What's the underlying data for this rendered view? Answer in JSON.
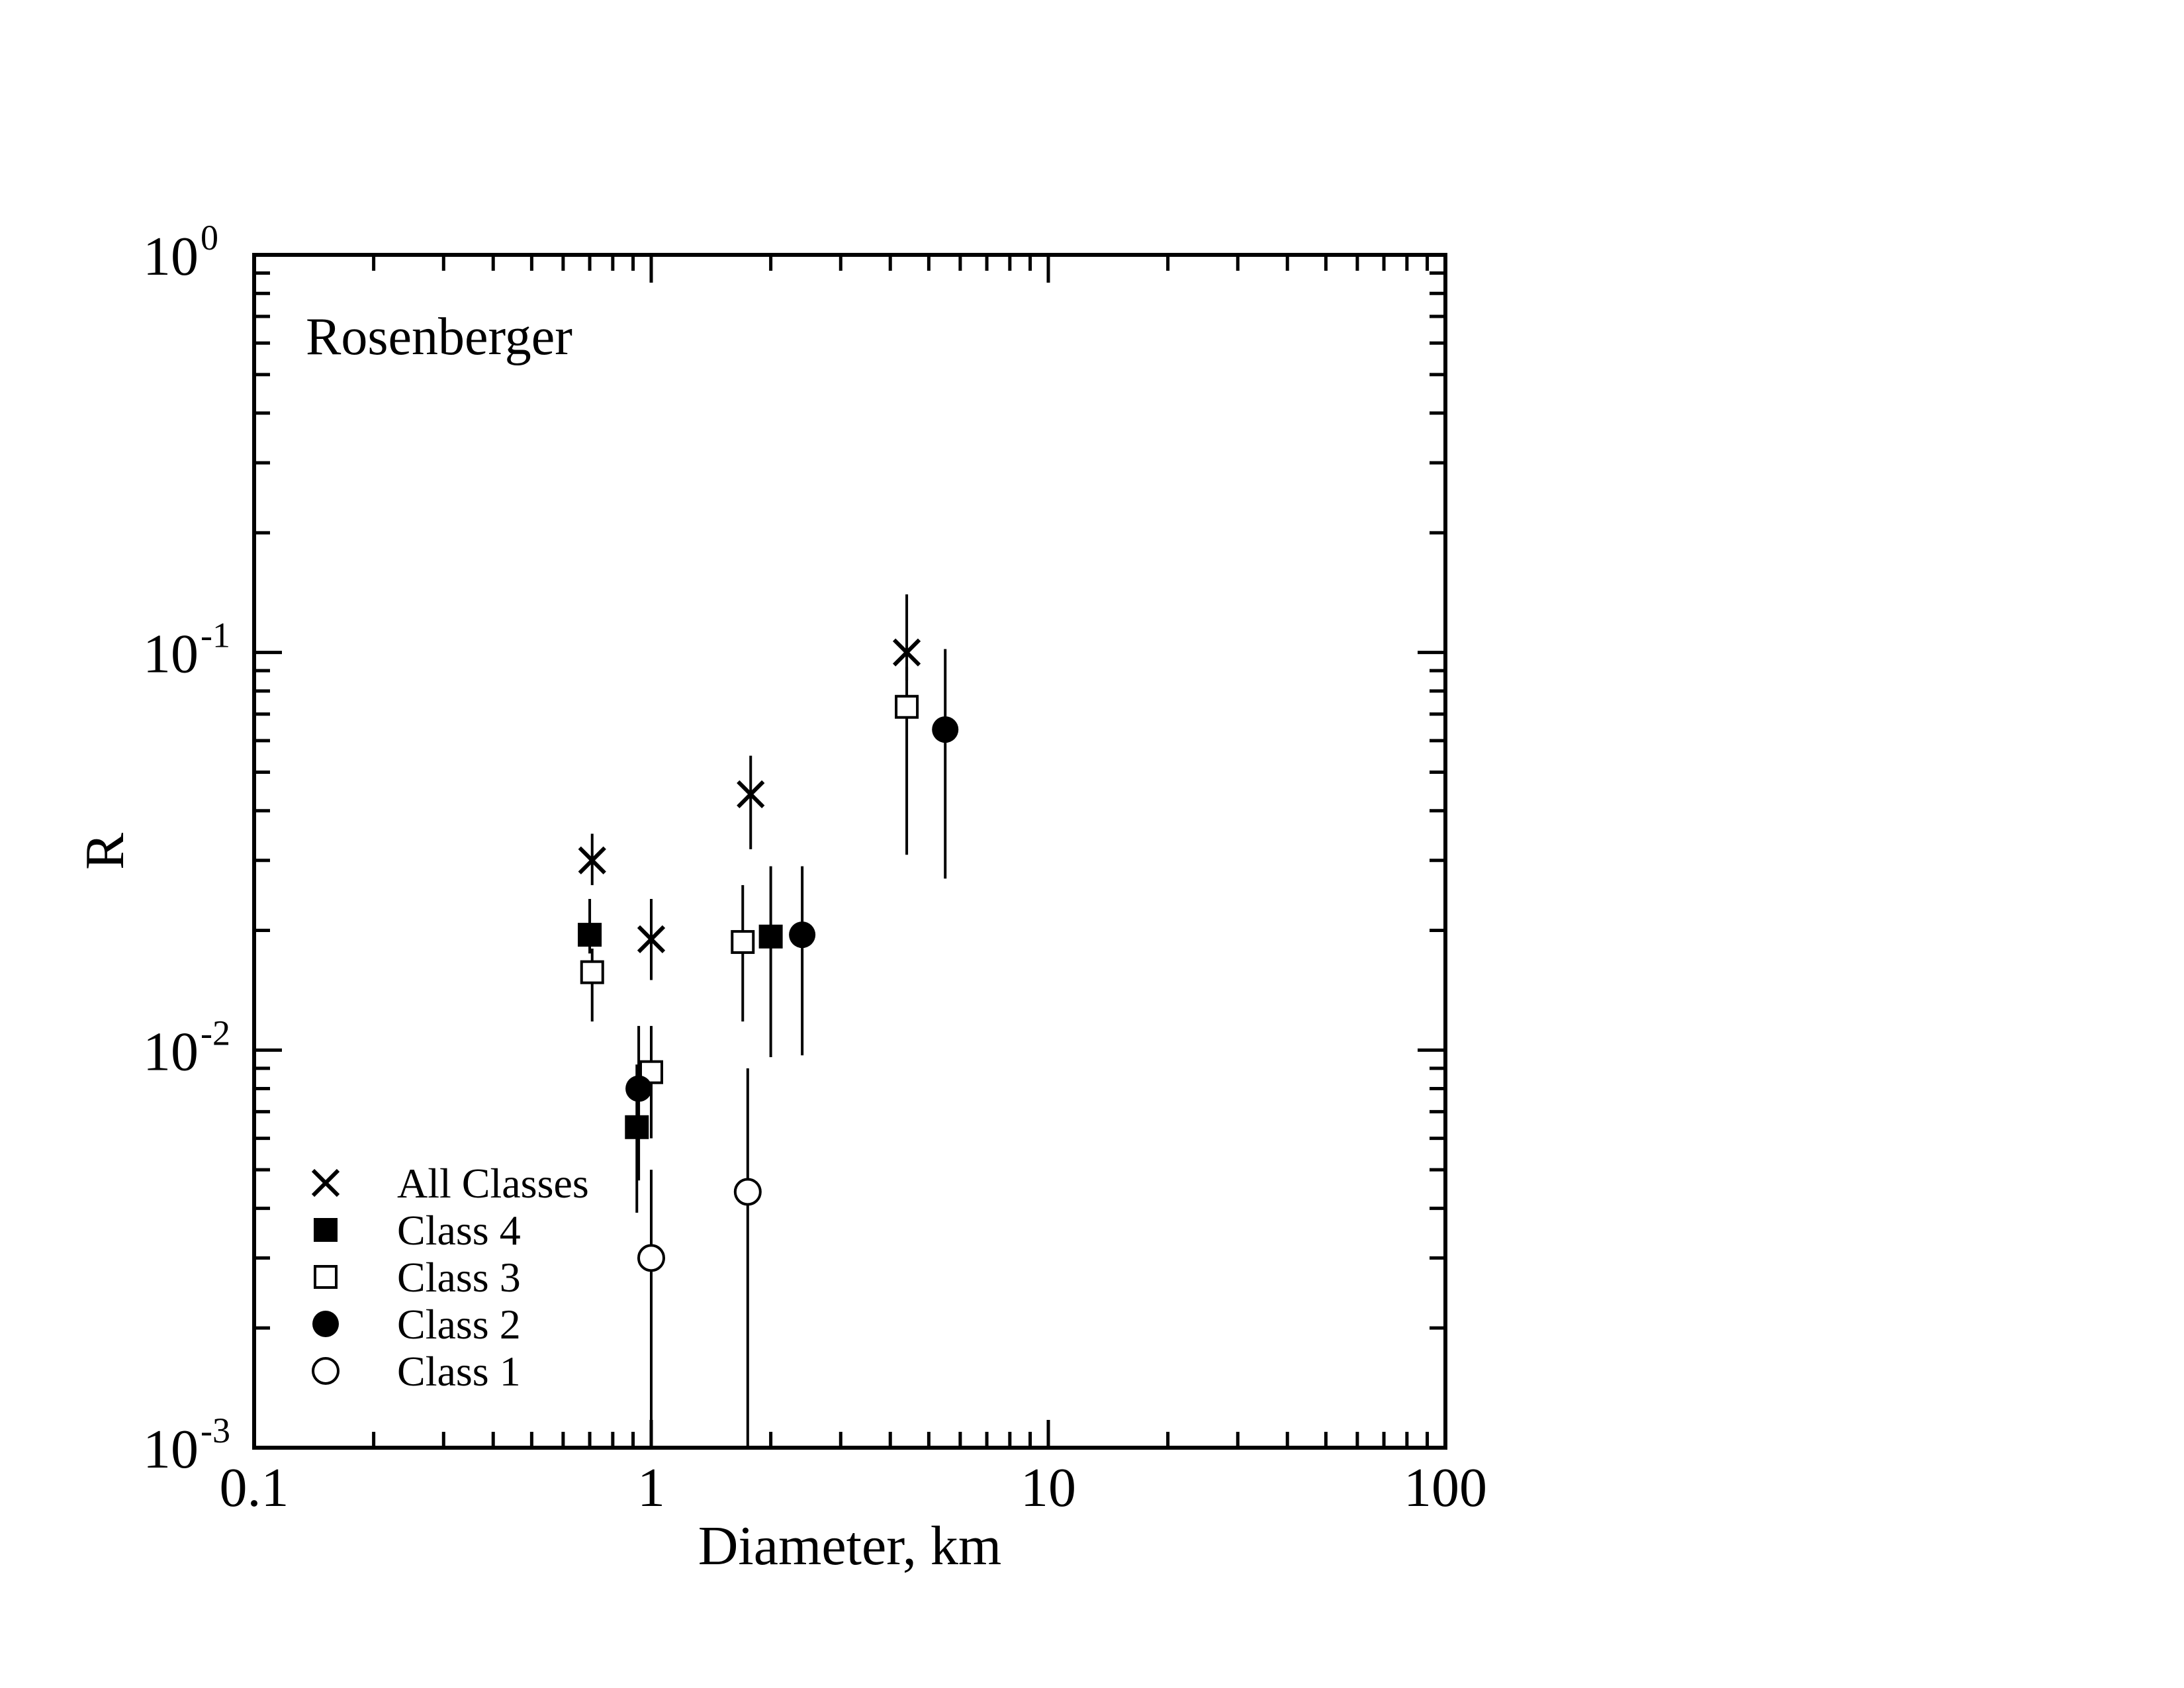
{
  "chart_data": {
    "type": "scatter",
    "title": "Rosenberger",
    "xlabel": "Diameter, km",
    "ylabel": "R",
    "xscale": "log",
    "yscale": "log",
    "xlim": [
      0.1,
      100
    ],
    "ylim": [
      0.001,
      1
    ],
    "x_tick_labels": [
      {
        "value": 0.1,
        "label": "0.1"
      },
      {
        "value": 1,
        "label": "1"
      },
      {
        "value": 10,
        "label": "10"
      },
      {
        "value": 100,
        "label": "100"
      }
    ],
    "y_tick_labels": [
      {
        "value": 1,
        "base": "10",
        "exp": "0"
      },
      {
        "value": 0.1,
        "base": "10",
        "exp": "-1"
      },
      {
        "value": 0.01,
        "base": "10",
        "exp": "-2"
      },
      {
        "value": 0.001,
        "base": "10",
        "exp": "-3"
      }
    ],
    "legend_position": "bottom-left",
    "grid": false,
    "series": [
      {
        "name": "All Classes",
        "marker": "x",
        "points": [
          {
            "x": 0.71,
            "y": 0.03,
            "ylo": 0.026,
            "yhi": 0.035
          },
          {
            "x": 1.0,
            "y": 0.019,
            "ylo": 0.015,
            "yhi": 0.024
          },
          {
            "x": 1.78,
            "y": 0.044,
            "ylo": 0.032,
            "yhi": 0.055
          },
          {
            "x": 4.4,
            "y": 0.1,
            "ylo": 0.085,
            "yhi": 0.14
          }
        ]
      },
      {
        "name": "Class 4",
        "marker": "filled-square",
        "points": [
          {
            "x": 0.7,
            "y": 0.0195,
            "ylo": 0.0175,
            "yhi": 0.024
          },
          {
            "x": 0.92,
            "y": 0.0064,
            "ylo": 0.0039,
            "yhi": 0.0092
          },
          {
            "x": 2.0,
            "y": 0.0193,
            "ylo": 0.0096,
            "yhi": 0.029
          }
        ]
      },
      {
        "name": "Class 3",
        "marker": "open-square",
        "points": [
          {
            "x": 0.71,
            "y": 0.0157,
            "ylo": 0.0118,
            "yhi": 0.018
          },
          {
            "x": 1.0,
            "y": 0.0088,
            "ylo": 0.006,
            "yhi": 0.0115
          },
          {
            "x": 1.7,
            "y": 0.0187,
            "ylo": 0.0118,
            "yhi": 0.026
          },
          {
            "x": 4.4,
            "y": 0.073,
            "ylo": 0.031,
            "yhi": 0.092
          }
        ]
      },
      {
        "name": "Class 2",
        "marker": "filled-circle",
        "points": [
          {
            "x": 0.93,
            "y": 0.008,
            "ylo": 0.0047,
            "yhi": 0.0115
          },
          {
            "x": 2.4,
            "y": 0.0195,
            "ylo": 0.0097,
            "yhi": 0.029
          },
          {
            "x": 5.5,
            "y": 0.064,
            "ylo": 0.027,
            "yhi": 0.102
          }
        ]
      },
      {
        "name": "Class 1",
        "marker": "open-circle",
        "points": [
          {
            "x": 1.0,
            "y": 0.003,
            "ylo": 0.001,
            "yhi": 0.005
          },
          {
            "x": 1.75,
            "y": 0.0044,
            "ylo": 0.001,
            "yhi": 0.009
          }
        ]
      }
    ]
  }
}
